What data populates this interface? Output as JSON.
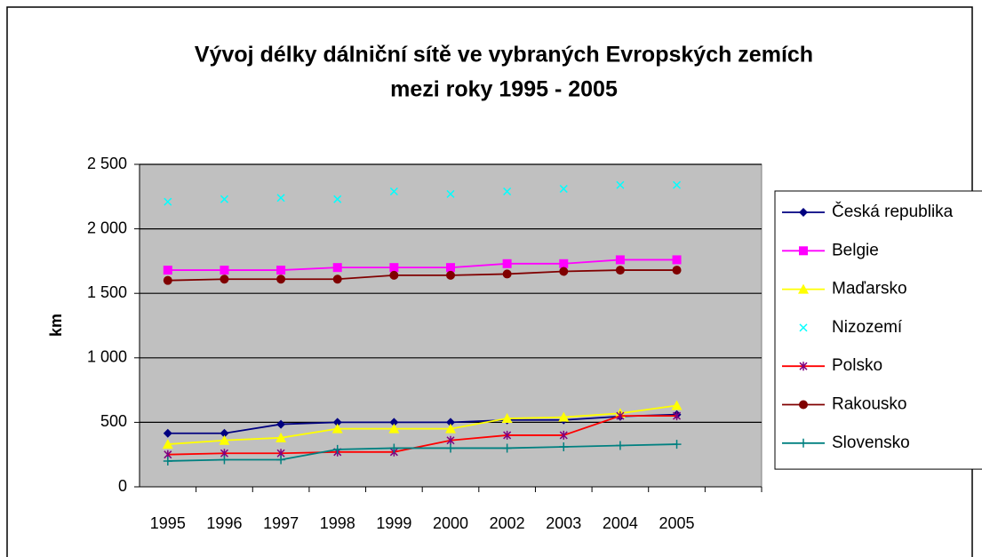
{
  "chart_data": {
    "type": "line",
    "title": [
      "Vývoj délky dálniční sítě ve vybraných Evropských zemích",
      "mezi roky 1995 - 2005"
    ],
    "y_label": "km",
    "categories": [
      "1995",
      "1996",
      "1997",
      "1998",
      "1999",
      "2000",
      "2002",
      "2003",
      "2004",
      "2005",
      null
    ],
    "series": [
      {
        "name": "Česká republika",
        "color": "#000080",
        "marker": "diamond",
        "line": true,
        "values": [
          415,
          415,
          485,
          500,
          500,
          500,
          518,
          518,
          546,
          560,
          null
        ]
      },
      {
        "name": "Belgie",
        "color": "#ff00ff",
        "marker": "square",
        "line": true,
        "values": [
          1680,
          1680,
          1680,
          1700,
          1700,
          1700,
          1730,
          1730,
          1760,
          1760,
          null
        ]
      },
      {
        "name": "Maďarsko",
        "color": "#ffff00",
        "marker": "triangle",
        "line": true,
        "values": [
          330,
          360,
          380,
          450,
          450,
          450,
          530,
          540,
          570,
          630,
          null
        ]
      },
      {
        "name": "Nizozemí",
        "color": "#00ffff",
        "marker": "x",
        "line": false,
        "values": [
          2210,
          2230,
          2240,
          2230,
          2290,
          2270,
          2290,
          2310,
          2340,
          2340,
          null
        ]
      },
      {
        "name": "Polsko",
        "color": "#ff0000",
        "marker_color": "#800080",
        "marker": "asterisk",
        "line": true,
        "values": [
          250,
          260,
          260,
          270,
          270,
          360,
          400,
          400,
          550,
          550,
          null
        ]
      },
      {
        "name": "Rakousko",
        "color": "#800000",
        "marker": "circle",
        "line": true,
        "values": [
          1600,
          1610,
          1610,
          1610,
          1640,
          1640,
          1650,
          1670,
          1680,
          1680,
          null
        ]
      },
      {
        "name": "Slovensko",
        "color": "#008080",
        "marker": "plus",
        "line": true,
        "values": [
          200,
          210,
          210,
          290,
          300,
          300,
          300,
          310,
          320,
          330,
          null
        ]
      }
    ],
    "ylim": [
      0,
      2500
    ],
    "yticks": [
      0,
      500,
      {
        "value": 1000,
        "label": "1 000"
      },
      {
        "value": 1500,
        "label": "1 500"
      },
      {
        "value": 2000,
        "label": "2 000"
      },
      {
        "value": 2500,
        "label": "2 500"
      }
    ],
    "grid": true,
    "plot_background": "#c0c0c0",
    "legend": "right"
  }
}
